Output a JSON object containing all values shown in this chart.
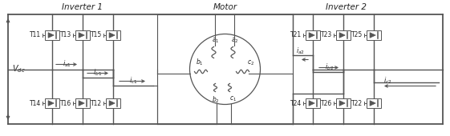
{
  "bg_color": "#ffffff",
  "line_color": "#555555",
  "text_color": "#222222",
  "inverter1_label": "Inverter 1",
  "inverter2_label": "Inverter 2",
  "motor_label": "Motor",
  "vdc_label": "V_{dc}",
  "inv1_top": [
    "T11",
    "T13",
    "T15"
  ],
  "inv1_bot": [
    "T14",
    "T16",
    "T12"
  ],
  "inv2_top": [
    "T21",
    "T23",
    "T25"
  ],
  "inv2_bot": [
    "T24",
    "T26",
    "T22"
  ],
  "cur1": [
    "i_{a1}",
    "i_{b1}",
    "i_{c1}"
  ],
  "cur2": [
    "i_{a2}",
    "i_{b2}",
    "i_{c2}"
  ],
  "motor_pts_top": [
    "a1",
    "a2"
  ],
  "motor_pts_left": [
    "b1"
  ],
  "motor_pts_bot": [
    "b2",
    "c1"
  ],
  "motor_pts_right": [
    "c2"
  ],
  "fig_w": 5.61,
  "fig_h": 1.7,
  "dpi": 100
}
